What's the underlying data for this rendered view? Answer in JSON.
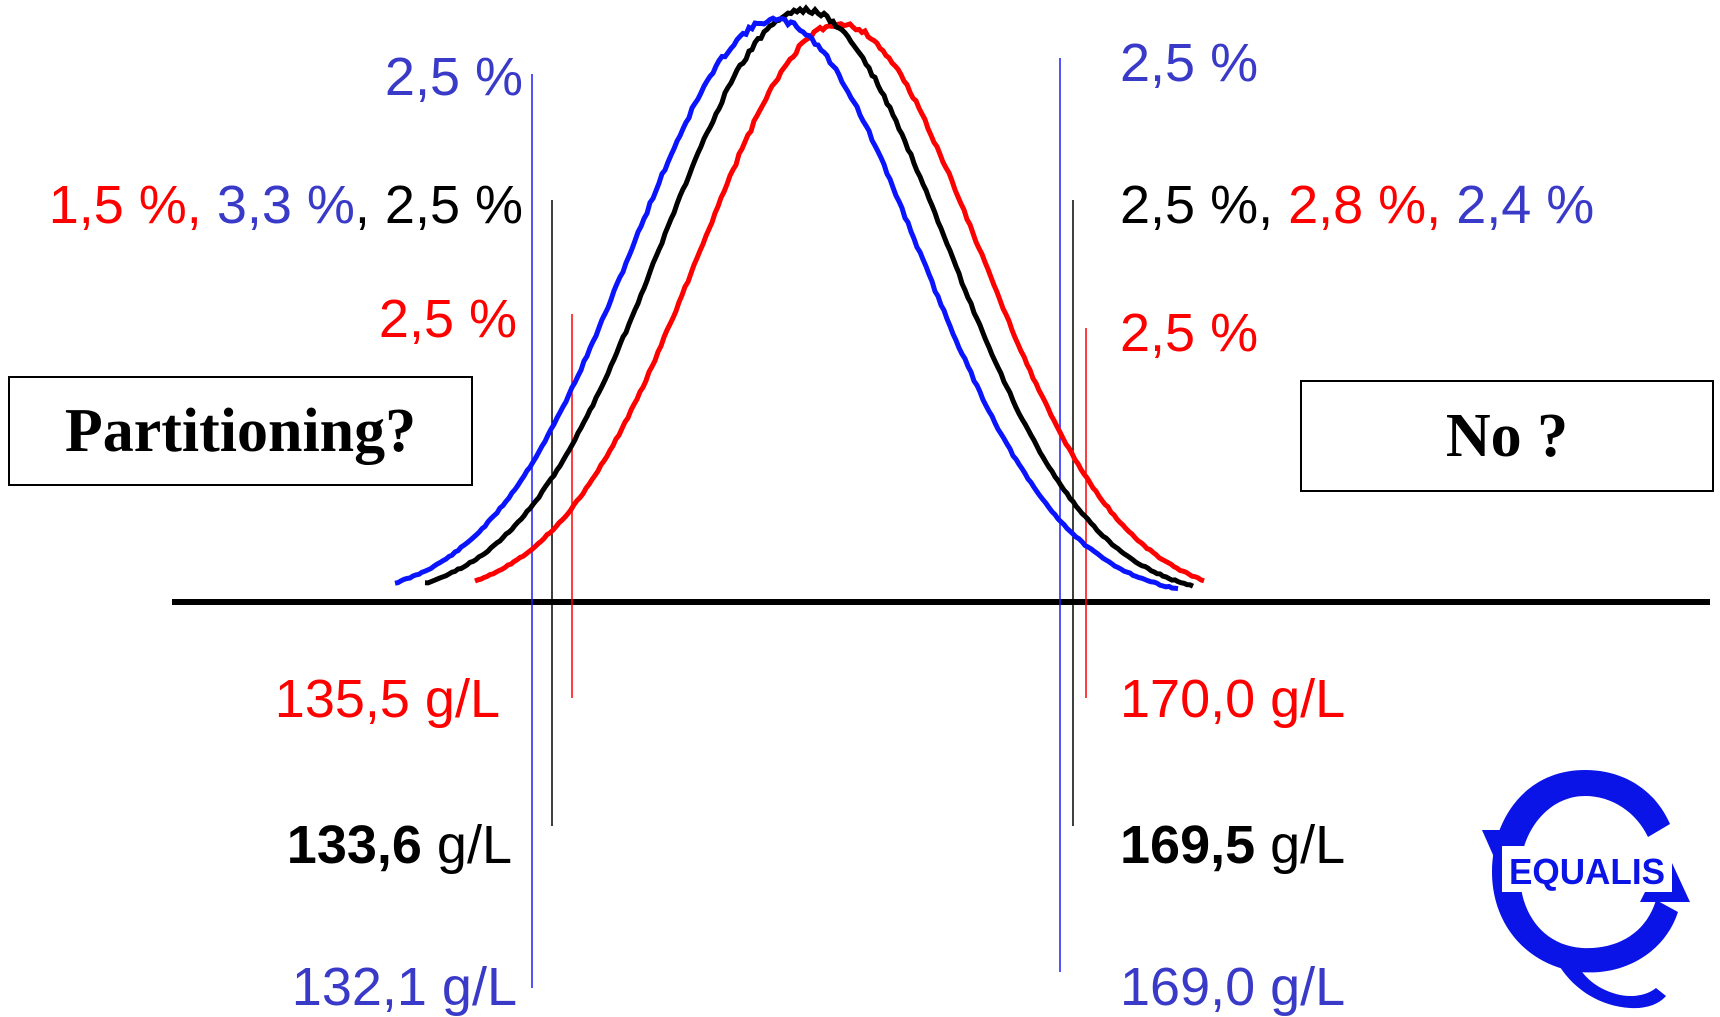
{
  "colors": {
    "blue": "#3a3ac8",
    "black": "#000000",
    "red": "#ff0000",
    "curve_blue": "#0a14ff",
    "logo": "#0a14e6"
  },
  "top_labels": {
    "left_blue": "2,5 %",
    "right_blue": "2,5 %",
    "left_mid": {
      "red": "1,5 %,",
      "blue": " 3,3 %",
      "black": ", 2,5 %"
    },
    "right_mid": {
      "black": "2,5 %,",
      "red": " 2,8 %,",
      "blue": " 2,4 %"
    },
    "left_red": "2,5 %",
    "right_red": "2,5 %"
  },
  "bottom_labels": {
    "left_red": "135,5 g/L",
    "right_red": "170,0 g/L",
    "left_black": {
      "value": "133,6",
      "unit": " g/L"
    },
    "right_black": {
      "value": "169,5",
      "unit": " g/L"
    },
    "left_blue": "132,1 g/L",
    "right_blue": "169,0 g/L"
  },
  "boxes": {
    "left": "Partitioning?",
    "right": "No ?"
  },
  "logo": {
    "text": "EQUALIS",
    "icon": "equalis-logo-icon"
  },
  "chart_data": {
    "type": "line",
    "series": [
      {
        "name": "",
        "color": "blue",
        "x": [
          132.1,
          169.0
        ],
        "mean": 150.5
      },
      {
        "name": "",
        "color": "black",
        "x": [
          133.6,
          169.5
        ],
        "mean": 151.5
      },
      {
        "name": "",
        "color": "red",
        "x": [
          135.5,
          170.0
        ],
        "mean": 152.7
      }
    ]
  }
}
